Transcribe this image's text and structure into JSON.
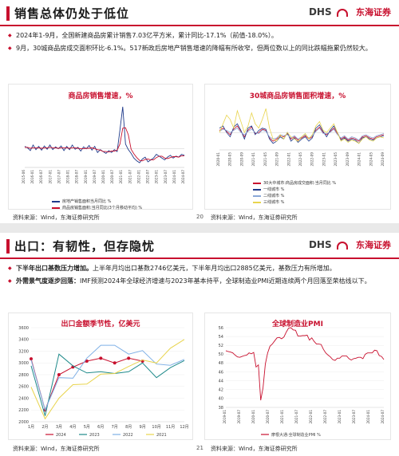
{
  "slide1": {
    "title": "销售总体仍处于低位",
    "logo": {
      "latin": "DHS",
      "cn": "东海证券"
    },
    "bullets": [
      "2024年1-9月，全国新建商品房累计销售7.03亿平方米，累计同比-17.1%（前值-18.0%）。",
      "9月，30城商品房成交面积环比-6.1%。517新政后房地产销售增速的降幅有所收窄，但两位数以上的同比跌幅拖累仍然较大。"
    ],
    "source": "资料来源：Wind，东海证券研究所",
    "page": "20",
    "charts": [
      {
        "chart_data": {
          "type": "line",
          "title": "商品房销售增速，%",
          "legend_placement": "bottom",
          "series": [
            {
              "name": "房地产销售面积当月同比 %",
              "color": "#1f3a8a",
              "values": [
                5,
                2,
                -4,
                8,
                -2,
                5,
                -3,
                6,
                -1,
                8,
                -2,
                4,
                0,
                6,
                -4,
                5,
                -2,
                8,
                -1,
                3,
                -5,
                4,
                0,
                7,
                -3,
                5,
                -8,
                -2,
                -6,
                -10,
                -4,
                -8,
                -2,
                -6,
                40,
                90,
                10,
                -2,
                -10,
                -20,
                -26,
                -30,
                -22,
                -18,
                -28,
                -24,
                -20,
                -12,
                -16,
                -20,
                -24,
                -18,
                -14,
                -20,
                -16,
                -18,
                -12,
                -14
              ]
            },
            {
              "name": "商品房销售面积:当月同比(3个月移动平均) %",
              "color": "#c8102e",
              "values": [
                3,
                3,
                1,
                2,
                2,
                2,
                1,
                2,
                2,
                3,
                2,
                2,
                1,
                2,
                2,
                2,
                1,
                2,
                2,
                1,
                0,
                0,
                1,
                1,
                2,
                0,
                -2,
                -3,
                -6,
                -6,
                -7,
                -5,
                -5,
                -3,
                10,
                44,
                45,
                30,
                -1,
                -11,
                -19,
                -25,
                -26,
                -23,
                -22,
                -24,
                -24,
                -19,
                -16,
                -16,
                -20,
                -21,
                -19,
                -17,
                -17,
                -18,
                -15,
                -15
              ]
            }
          ],
          "x_ticks": [
            "2015-06",
            "2016-01",
            "2016-07",
            "2017-01",
            "2017-07",
            "2018-01",
            "2018-07",
            "2019-01",
            "2019-07",
            "2020-01",
            "2020-07",
            "2021-01",
            "2021-07",
            "2022-01",
            "2022-07",
            "2023-01",
            "2023-07",
            "2024-01",
            "2024-07"
          ],
          "ylim": [
            -40,
            100
          ]
        }
      },
      {
        "chart_data": {
          "type": "line",
          "title": "30城商品房销售面积增速，%",
          "legend_placement": "bottom",
          "series": [
            {
              "name": "30大中城市:商品房成交面积:当月同比 %",
              "color": "#c8102e",
              "values": [
                10,
                20,
                5,
                -10,
                15,
                30,
                5,
                -20,
                10,
                25,
                -5,
                0,
                15,
                10,
                -25,
                -40,
                -30,
                -15,
                -20,
                -5,
                -30,
                -20,
                -35,
                -25,
                -15,
                -30,
                -20,
                10,
                25,
                0,
                -10,
                5,
                20,
                -5,
                -30,
                -20,
                -35,
                -25,
                -30,
                -40,
                -20,
                -15,
                -25,
                -30,
                -20,
                -15,
                -10
              ]
            },
            {
              "name": "一线城市 %",
              "color": "#1f3a8a",
              "values": [
                20,
                30,
                0,
                -20,
                25,
                40,
                10,
                -30,
                20,
                30,
                -10,
                10,
                20,
                15,
                -30,
                -50,
                -40,
                -20,
                -30,
                0,
                -40,
                -25,
                -45,
                -30,
                -20,
                -40,
                -25,
                20,
                35,
                5,
                -20,
                10,
                30,
                0,
                -35,
                -25,
                -40,
                -30,
                -35,
                -50,
                -25,
                -20,
                -30,
                -35,
                -25,
                -20,
                -15
              ]
            },
            {
              "name": "二线城市 %",
              "color": "#8aa8d8",
              "values": [
                5,
                15,
                10,
                0,
                10,
                20,
                0,
                -10,
                5,
                15,
                0,
                -5,
                10,
                5,
                -20,
                -30,
                -25,
                -10,
                -15,
                -10,
                -25,
                -15,
                -30,
                -20,
                -10,
                -25,
                -15,
                5,
                20,
                -5,
                -5,
                0,
                15,
                -10,
                -25,
                -15,
                -30,
                -20,
                -25,
                -35,
                -15,
                -10,
                -20,
                -25,
                -15,
                -10,
                -5
              ]
            },
            {
              "name": "三线城市 %",
              "color": "#e8d44d",
              "values": [
                0,
                40,
                80,
                60,
                20,
                100,
                50,
                0,
                30,
                90,
                40,
                20,
                60,
                110,
                20,
                -30,
                -40,
                -10,
                -30,
                0,
                -20,
                -30,
                -40,
                -20,
                -5,
                -30,
                -10,
                30,
                50,
                10,
                0,
                20,
                40,
                0,
                -40,
                -30,
                -45,
                -35,
                -40,
                -50,
                -30,
                -20,
                -35,
                -40,
                -25,
                -20,
                -25
              ]
            }
          ],
          "x_ticks": [
            "2020-01",
            "2020-05",
            "2020-09",
            "2021-01",
            "2021-05",
            "2021-09",
            "2022-01",
            "2022-05",
            "2022-09",
            "2023-01",
            "2023-05",
            "2023-09",
            "2024-01",
            "2024-05",
            "2024-09"
          ],
          "ylim": [
            -80,
            140
          ]
        }
      }
    ]
  },
  "slide2": {
    "title": "出口：有韧性，但存隐忧",
    "logo": {
      "latin": "DHS",
      "cn": "东海证券"
    },
    "bullets": [
      {
        "bold": "下半年出口基数压力增加。",
        "text": "上半年月均出口基数2746亿美元，下半年月均出口2885亿美元，基数压力有所增加。"
      },
      {
        "bold": "外需景气度逐步回落：",
        "text": "IMF预测2024年全球经济增速与2023年基本持平，全球制造业PMI近期连续两个月回落至荣枯线以下。"
      }
    ],
    "source_left": "资料来源：Wind，东海证券研究所",
    "page": "21",
    "source_right": "资料来源：Wind，东海证券研究所",
    "charts": [
      {
        "chart_data": {
          "type": "line",
          "title": "出口金额季节性，亿美元",
          "categories": [
            "1月",
            "2月",
            "3月",
            "4月",
            "5月",
            "6月",
            "7月",
            "8月",
            "9月",
            "10月",
            "11月",
            "12月"
          ],
          "y_ticks": [
            2000,
            2200,
            2400,
            2600,
            2800,
            3000,
            3200,
            3400,
            3600
          ],
          "ylim": [
            2000,
            3600
          ],
          "legend_placement": "bottom",
          "series": [
            {
              "name": "2024",
              "color": "#c8102e",
              "marker": true,
              "values": [
                3070,
                2200,
                2800,
                2930,
                3030,
                3080,
                3000,
                3080,
                3030,
                null,
                null,
                null
              ]
            },
            {
              "name": "2023",
              "color": "#1f8a8a",
              "values": [
                2950,
                2100,
                3150,
                2950,
                2830,
                2850,
                2820,
                2850,
                3000,
                2750,
                2920,
                3040
              ]
            },
            {
              "name": "2022",
              "color": "#7fb0e6",
              "values": [
                3050,
                2200,
                2750,
                2740,
                3080,
                3300,
                3300,
                3150,
                3210,
                2980,
                2960,
                3060
              ]
            },
            {
              "name": "2021",
              "color": "#e8d44d",
              "values": [
                2590,
                2050,
                2400,
                2630,
                2640,
                2810,
                2820,
                2940,
                3050,
                3000,
                3250,
                3400
              ]
            }
          ]
        }
      },
      {
        "chart_data": {
          "type": "line",
          "title": "全球制造业PMI",
          "y_ticks": [
            38,
            40,
            42,
            44,
            46,
            48,
            50,
            52,
            54,
            56
          ],
          "ylim": [
            38,
            56
          ],
          "x_ticks": [
            "2019-01",
            "2019-07",
            "2020-01",
            "2020-07",
            "2021-01",
            "2021-07",
            "2022-01",
            "2022-07",
            "2023-01",
            "2023-07",
            "2024-01",
            "2024-07"
          ],
          "legend_placement": "bottom",
          "series": [
            {
              "name": "摩根大通:全球制造业PMI %",
              "color": "#c8102e",
              "values": [
                50.8,
                50.6,
                50.5,
                50.3,
                49.8,
                49.4,
                49.3,
                49.5,
                49.7,
                49.8,
                50.3,
                50.1,
                50.4,
                47.1,
                47.6,
                39.6,
                42.4,
                47.8,
                50.3,
                51.8,
                52.3,
                53.0,
                53.7,
                53.8,
                53.5,
                53.9,
                55.0,
                55.9,
                56.0,
                55.5,
                55.4,
                54.1,
                54.1,
                54.2,
                54.2,
                54.3,
                53.2,
                53.7,
                52.9,
                52.3,
                52.3,
                52.2,
                51.1,
                50.3,
                49.8,
                49.4,
                48.8,
                48.6,
                49.1,
                49.1,
                49.6,
                49.6,
                49.6,
                49.0,
                48.7,
                49.0,
                49.1,
                49.3,
                49.3,
                49.0,
                50.0,
                50.3,
                50.3,
                50.3,
                50.9,
                50.8,
                49.7,
                49.5,
                48.8
              ]
            }
          ]
        }
      }
    ]
  }
}
